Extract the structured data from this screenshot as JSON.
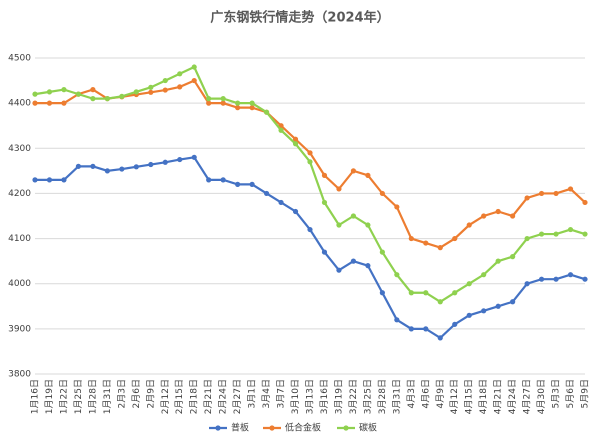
{
  "chart_data": {
    "type": "line",
    "title": "广东钢铁行情走势（2024年）",
    "categories": [
      "1月16日",
      "1月19日",
      "1月22日",
      "1月25日",
      "1月28日",
      "1月31日",
      "2月3日",
      "2月6日",
      "2月9日",
      "2月12日",
      "2月15日",
      "2月18日",
      "2月21日",
      "2月24日",
      "2月27日",
      "3月1日",
      "3月4日",
      "3月7日",
      "3月10日",
      "3月13日",
      "3月16日",
      "3月19日",
      "3月22日",
      "3月25日",
      "3月28日",
      "3月31日",
      "4月3日",
      "4月6日",
      "4月9日",
      "4月12日",
      "4月15日",
      "4月18日",
      "4月21日",
      "4月24日",
      "4月27日",
      "4月30日",
      "5月3日",
      "5月6日",
      "5月9日"
    ],
    "series": [
      {
        "name": "普板",
        "color": "#4472c4",
        "values": [
          4230,
          4230,
          4230,
          4260,
          4260,
          4250,
          4254,
          4259,
          4264,
          4269,
          4275,
          4280,
          4230,
          4230,
          4220,
          4220,
          4200,
          4180,
          4160,
          4120,
          4070,
          4030,
          4050,
          4040,
          3980,
          3920,
          3900,
          3900,
          3880,
          3910,
          3930,
          3940,
          3950,
          3960,
          4000,
          4010,
          4010,
          4020,
          4010
        ]
      },
      {
        "name": "低合金板",
        "color": "#ed7d31",
        "values": [
          4400,
          4400,
          4400,
          4420,
          4430,
          4410,
          4414,
          4419,
          4424,
          4429,
          4436,
          4450,
          4400,
          4400,
          4390,
          4390,
          4380,
          4350,
          4320,
          4290,
          4240,
          4210,
          4250,
          4240,
          4200,
          4170,
          4100,
          4090,
          4080,
          4100,
          4130,
          4150,
          4160,
          4150,
          4190,
          4200,
          4200,
          4210,
          4180
        ]
      },
      {
        "name": "碳板",
        "color": "#8fd14f",
        "values": [
          4420,
          4425,
          4430,
          4420,
          4410,
          4410,
          4415,
          4425,
          4435,
          4450,
          4465,
          4480,
          4410,
          4410,
          4400,
          4400,
          4380,
          4340,
          4310,
          4270,
          4180,
          4130,
          4150,
          4130,
          4070,
          4020,
          3980,
          3980,
          3960,
          3980,
          4000,
          4020,
          4050,
          4060,
          4100,
          4110,
          4110,
          4120,
          4110
        ]
      }
    ],
    "ylim": [
      3800,
      4500
    ],
    "yticks": [
      3800,
      3900,
      4000,
      4100,
      4200,
      4300,
      4400,
      4500
    ],
    "grid": true,
    "legend": "bottom"
  }
}
